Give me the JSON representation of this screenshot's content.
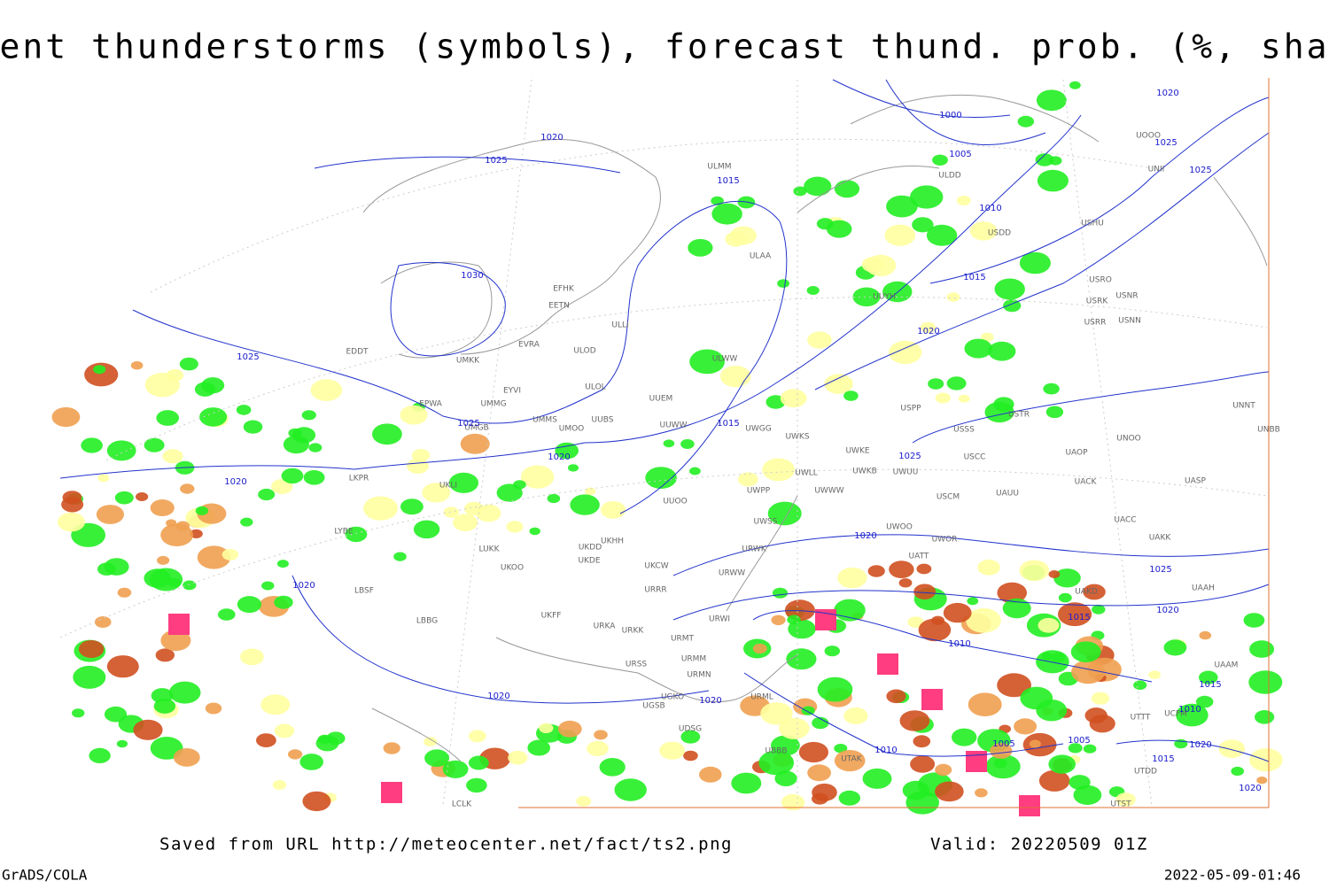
{
  "header": {
    "title": "Current thunderstorms (symbols), forecast thund. prob. (%, shaded)"
  },
  "map": {
    "stations": [
      "ULMM",
      "ULDD",
      "USDD",
      "USHU",
      "UUYH",
      "ULAA",
      "EFHK",
      "EETN",
      "ULLI",
      "UMKK",
      "ULOD",
      "EVRA",
      "EDDT",
      "ULWW",
      "ULOL",
      "EPWA",
      "EYVI",
      "UMMG",
      "UUEM",
      "UMMS",
      "UUBS",
      "UMGB",
      "UMOO",
      "UUWW",
      "UWGG",
      "UWKS",
      "UWKE",
      "UWKB",
      "UWUU",
      "UWLL",
      "UWWW",
      "UWPP",
      "UUOO",
      "UKLI",
      "LKPR",
      "LYBE",
      "LUKK",
      "UKOO",
      "UKDD",
      "UKHH",
      "UKCW",
      "UKDE",
      "URRR",
      "UKFF",
      "URKA",
      "URKK",
      "URWI",
      "URMT",
      "URMM",
      "URMN",
      "URSS",
      "UGKO",
      "UGSB",
      "UDSG",
      "UBBB",
      "UTAK",
      "URML",
      "URWW",
      "URWK",
      "UWSS",
      "UATT",
      "UWOO",
      "UWOR",
      "USCM",
      "UAUU",
      "USCC",
      "USSS",
      "USTR",
      "USPP",
      "UACC",
      "UAKK",
      "UASP",
      "UACK",
      "UAOP",
      "UNOO",
      "UNBB",
      "UNNT",
      "USNR",
      "USNN",
      "USRR",
      "USRK",
      "USRO",
      "UNII",
      "UOOO",
      "UAKD",
      "UAAH",
      "LBSF",
      "LBBG",
      "LCLK",
      "UTST",
      "UTDD",
      "UAAM",
      "UTTT",
      "UCFM"
    ],
    "isobar_labels": [
      1025,
      1020,
      1000,
      1005,
      1015,
      1010,
      1015,
      1020,
      1030,
      1025,
      1025,
      1020,
      1015,
      1025,
      1020,
      1020,
      1020,
      1025,
      1020,
      1015,
      1010,
      1020,
      1020,
      1005,
      1005,
      1010,
      1015,
      1010,
      1020,
      1015,
      1020,
      1025,
      1020,
      1025
    ]
  },
  "footer": {
    "source": "Saved from URL http://meteocenter.net/fact/ts2.png",
    "valid": "Valid: 20220509 01Z",
    "software": "GrADS/COLA",
    "timestamp": "2022-05-09-01:46"
  }
}
